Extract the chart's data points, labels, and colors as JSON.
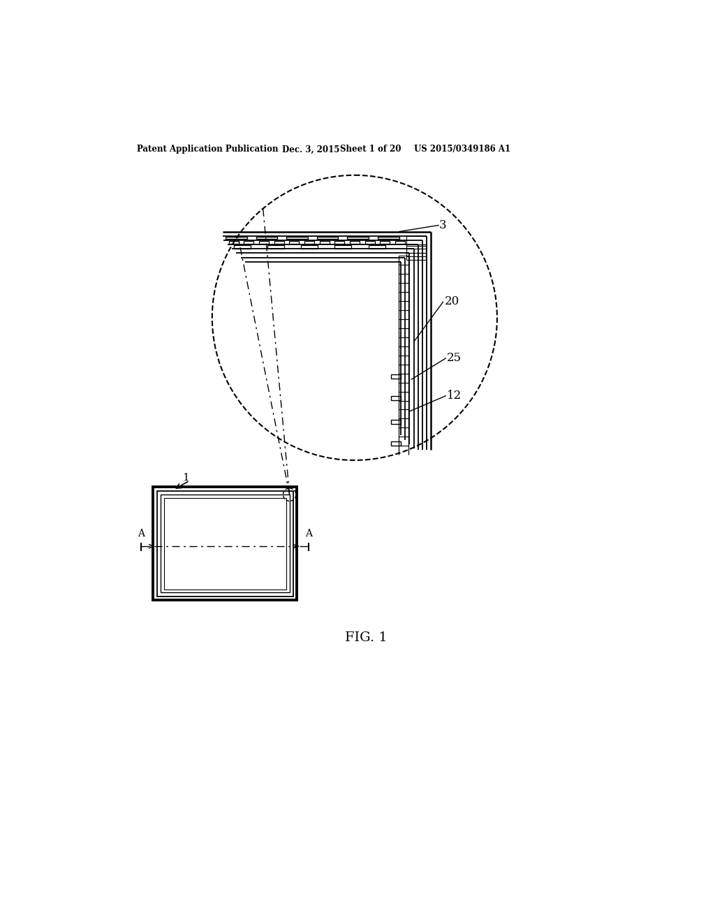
{
  "bg_color": "#ffffff",
  "header_text1": "Patent Application Publication",
  "header_text2": "Dec. 3, 2015",
  "header_text3": "Sheet 1 of 20",
  "header_text4": "US 2015/0349186 A1",
  "fig_label": "FIG. 1",
  "label_3": "3",
  "label_20": "20",
  "label_25": "25",
  "label_12": "12",
  "label_1": "1"
}
